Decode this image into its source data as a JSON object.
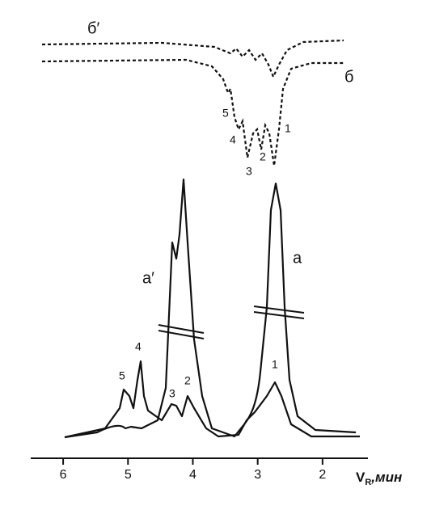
{
  "chart_data": {
    "type": "line",
    "curve_labels": [
      "б′",
      "б",
      "а",
      "а′"
    ],
    "peak_labels_b": [
      "1",
      "2",
      "3",
      "4",
      "5"
    ],
    "peak_labels_a": [
      "1",
      "2",
      "3",
      "4",
      "5"
    ],
    "xlabel": {
      "main": "V",
      "sub": "R",
      "unit": ",мин"
    },
    "xlim": [
      6.5,
      1.3
    ],
    "xticks": [
      6,
      5,
      4,
      3,
      2
    ]
  }
}
